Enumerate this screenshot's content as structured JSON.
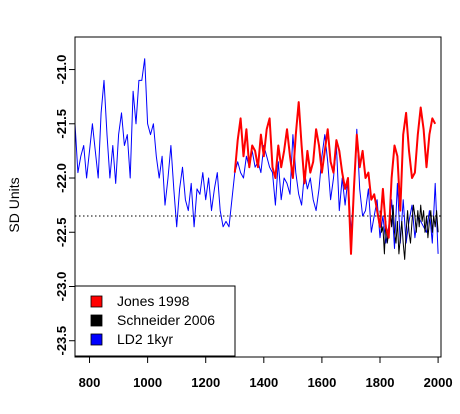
{
  "chart_data": {
    "type": "line",
    "title": "",
    "xlabel": "",
    "ylabel": "SD Units",
    "xlim": [
      750,
      2010
    ],
    "ylim": [
      -23.65,
      -20.7
    ],
    "y_reversed": true,
    "x_ticks": [
      800,
      1000,
      1200,
      1400,
      1600,
      1800,
      2000
    ],
    "y_ticks": [
      -21.0,
      -21.5,
      -22.0,
      -22.5,
      -23.0,
      -23.5
    ],
    "y_tick_labels": [
      "-21.0",
      "-21.5",
      "-22.0",
      "-22.5",
      "-23.0",
      "-23.5"
    ],
    "x_tick_labels": [
      "800",
      "1000",
      "1200",
      "1400",
      "1600",
      "1800",
      "2000"
    ],
    "reference_line": -22.35,
    "grid": false,
    "legend_position": "bottom-left",
    "legend": [
      {
        "label": "Jones 1998",
        "color": "#ff0000"
      },
      {
        "label": "Schneider 2006",
        "color": "#000000"
      },
      {
        "label": "LD2 1kyr",
        "color": "#0000ff"
      }
    ],
    "series": [
      {
        "name": "LD2 1kyr",
        "color": "#0000ff",
        "x": [
          750,
          760,
          770,
          780,
          790,
          800,
          810,
          820,
          830,
          840,
          850,
          860,
          870,
          880,
          890,
          900,
          910,
          920,
          930,
          940,
          950,
          960,
          970,
          980,
          990,
          1000,
          1010,
          1020,
          1030,
          1040,
          1050,
          1060,
          1070,
          1080,
          1090,
          1100,
          1110,
          1120,
          1130,
          1140,
          1150,
          1160,
          1170,
          1180,
          1190,
          1200,
          1210,
          1220,
          1230,
          1240,
          1250,
          1260,
          1270,
          1280,
          1290,
          1300,
          1310,
          1320,
          1330,
          1340,
          1350,
          1360,
          1370,
          1380,
          1390,
          1400,
          1410,
          1420,
          1430,
          1440,
          1450,
          1460,
          1470,
          1480,
          1490,
          1500,
          1510,
          1520,
          1530,
          1540,
          1550,
          1560,
          1570,
          1580,
          1590,
          1600,
          1610,
          1620,
          1630,
          1640,
          1650,
          1660,
          1670,
          1680,
          1690,
          1700,
          1710,
          1720,
          1730,
          1740,
          1750,
          1760,
          1770,
          1780,
          1790,
          1800,
          1810,
          1820,
          1830,
          1840,
          1850,
          1860,
          1870,
          1880,
          1890,
          1900,
          1910,
          1920,
          1930,
          1940,
          1950,
          1960,
          1970,
          1980,
          1990,
          2000
        ],
        "y": [
          -21.5,
          -21.95,
          -21.8,
          -21.7,
          -22.0,
          -21.75,
          -21.5,
          -21.75,
          -22.0,
          -21.4,
          -21.1,
          -21.6,
          -22.0,
          -21.7,
          -22.05,
          -21.6,
          -21.4,
          -21.7,
          -21.6,
          -22.0,
          -21.2,
          -21.5,
          -21.1,
          -21.1,
          -20.9,
          -21.5,
          -21.6,
          -21.5,
          -21.8,
          -22.0,
          -21.8,
          -22.25,
          -22.0,
          -21.7,
          -22.1,
          -22.45,
          -22.1,
          -21.9,
          -22.2,
          -22.3,
          -22.05,
          -22.45,
          -22.1,
          -22.15,
          -21.95,
          -22.2,
          -22.0,
          -22.3,
          -22.1,
          -21.95,
          -22.3,
          -22.45,
          -22.4,
          -22.45,
          -22.2,
          -21.95,
          -21.85,
          -21.95,
          -22.0,
          -21.8,
          -21.9,
          -21.75,
          -21.9,
          -21.85,
          -21.95,
          -21.7,
          -21.8,
          -21.9,
          -21.95,
          -22.25,
          -21.85,
          -22.2,
          -22.0,
          -22.05,
          -22.15,
          -21.6,
          -21.95,
          -22.15,
          -22.25,
          -21.95,
          -22.1,
          -22.0,
          -22.2,
          -22.3,
          -22.1,
          -21.8,
          -21.6,
          -21.85,
          -22.2,
          -22.0,
          -21.7,
          -22.3,
          -22.0,
          -22.25,
          -22.0,
          -22.5,
          -22.15,
          -21.55,
          -22.1,
          -22.35,
          -22.3,
          -22.1,
          -22.5,
          -22.35,
          -22.2,
          -22.55,
          -22.35,
          -22.6,
          -22.45,
          -22.2,
          -22.65,
          -22.05,
          -22.6,
          -22.2,
          -22.6,
          -22.4,
          -22.25,
          -22.55,
          -22.35,
          -22.4,
          -22.45,
          -22.5,
          -22.3,
          -22.6,
          -22.05,
          -22.7
        ]
      },
      {
        "name": "Schneider 2006",
        "color": "#000000",
        "x": [
          1800,
          1805,
          1810,
          1815,
          1820,
          1825,
          1830,
          1835,
          1840,
          1845,
          1850,
          1855,
          1860,
          1865,
          1870,
          1875,
          1880,
          1885,
          1890,
          1895,
          1900,
          1905,
          1910,
          1915,
          1920,
          1925,
          1930,
          1935,
          1940,
          1945,
          1950,
          1955,
          1960,
          1965,
          1970,
          1975,
          1980,
          1985,
          1990,
          1995,
          2000
        ],
        "y": [
          -22.3,
          -22.5,
          -22.45,
          -22.7,
          -22.4,
          -22.6,
          -22.5,
          -22.3,
          -22.45,
          -22.25,
          -22.5,
          -22.6,
          -22.4,
          -22.7,
          -22.55,
          -22.4,
          -22.6,
          -22.75,
          -22.5,
          -22.3,
          -22.5,
          -22.6,
          -22.4,
          -22.25,
          -22.35,
          -22.5,
          -22.3,
          -22.45,
          -22.25,
          -22.4,
          -22.3,
          -22.5,
          -22.35,
          -22.55,
          -22.4,
          -22.3,
          -22.5,
          -22.35,
          -22.45,
          -22.3,
          -22.5
        ]
      },
      {
        "name": "Jones 1998",
        "color": "#ff0000",
        "x": [
          1300,
          1310,
          1320,
          1330,
          1340,
          1350,
          1360,
          1370,
          1380,
          1390,
          1400,
          1410,
          1420,
          1430,
          1440,
          1450,
          1460,
          1470,
          1480,
          1490,
          1500,
          1510,
          1520,
          1530,
          1540,
          1550,
          1560,
          1570,
          1580,
          1590,
          1600,
          1610,
          1620,
          1630,
          1640,
          1650,
          1660,
          1670,
          1680,
          1690,
          1700,
          1710,
          1720,
          1730,
          1740,
          1750,
          1760,
          1770,
          1780,
          1790,
          1800,
          1810,
          1820,
          1830,
          1840,
          1850,
          1860,
          1870,
          1880,
          1890,
          1900,
          1910,
          1920,
          1930,
          1940,
          1950,
          1960,
          1970,
          1980,
          1990
        ],
        "y": [
          -21.95,
          -21.65,
          -21.45,
          -21.8,
          -21.55,
          -21.9,
          -21.7,
          -21.75,
          -21.9,
          -21.6,
          -21.8,
          -21.55,
          -21.45,
          -21.9,
          -22.0,
          -21.7,
          -21.9,
          -21.75,
          -21.55,
          -21.8,
          -22.0,
          -21.6,
          -21.3,
          -21.7,
          -22.05,
          -21.75,
          -21.95,
          -21.85,
          -21.55,
          -21.7,
          -21.95,
          -21.75,
          -21.55,
          -21.85,
          -21.95,
          -21.65,
          -21.75,
          -21.95,
          -22.1,
          -22.0,
          -22.7,
          -22.1,
          -21.6,
          -21.9,
          -21.75,
          -22.0,
          -21.95,
          -22.2,
          -22.15,
          -22.3,
          -22.45,
          -22.1,
          -22.45,
          -22.55,
          -22.0,
          -21.7,
          -21.8,
          -22.3,
          -21.6,
          -21.4,
          -21.75,
          -22.0,
          -21.95,
          -21.6,
          -21.35,
          -21.55,
          -21.9,
          -21.6,
          -21.45,
          -21.5
        ]
      }
    ]
  }
}
